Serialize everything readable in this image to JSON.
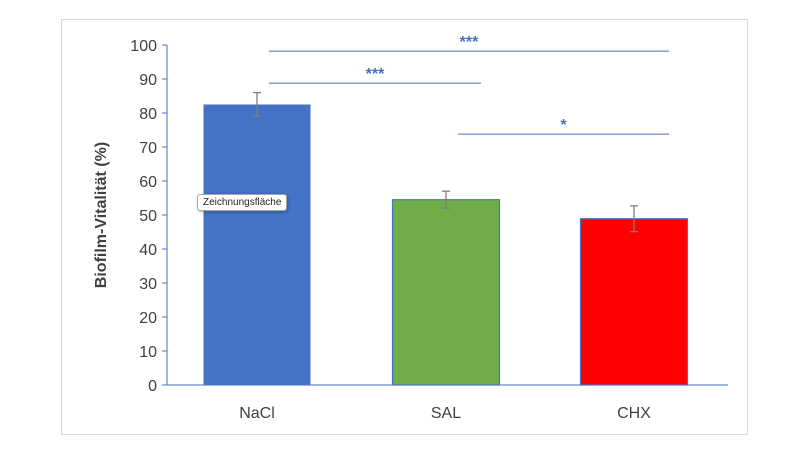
{
  "tooltip": {
    "text": "Zeichnungsfläche"
  },
  "colors": {
    "axis": "#4472c4",
    "text": "#404040",
    "error_bar": "#7f7f7f",
    "significance": "#4472c4"
  },
  "chart_data": {
    "type": "bar",
    "categories": [
      "NaCl",
      "SAL",
      "CHX"
    ],
    "values": [
      82.5,
      54.5,
      48.9
    ],
    "errors": [
      3.5,
      2.5,
      3.8
    ],
    "bar_colors": [
      "#4472c4",
      "#70ad47",
      "#ff0000"
    ],
    "title": "",
    "xlabel": "",
    "ylabel": "Biofilm-Vitalität (%)",
    "ylim": [
      0,
      100
    ],
    "yticks": [
      0,
      10,
      20,
      30,
      40,
      50,
      60,
      70,
      80,
      90,
      100
    ],
    "ytick_labels": [
      "0",
      "10",
      "20",
      "30",
      "40",
      "50",
      "60",
      "70",
      "80",
      "90",
      "100"
    ],
    "grid": false,
    "legend": "none",
    "significance": [
      {
        "from": "NaCl",
        "to": "CHX",
        "label": "***",
        "y": 98.2
      },
      {
        "from": "NaCl",
        "to": "SAL",
        "label": "***",
        "y": 88.8
      },
      {
        "from": "SAL",
        "to": "CHX",
        "label": "*",
        "y": 73.8
      }
    ]
  }
}
